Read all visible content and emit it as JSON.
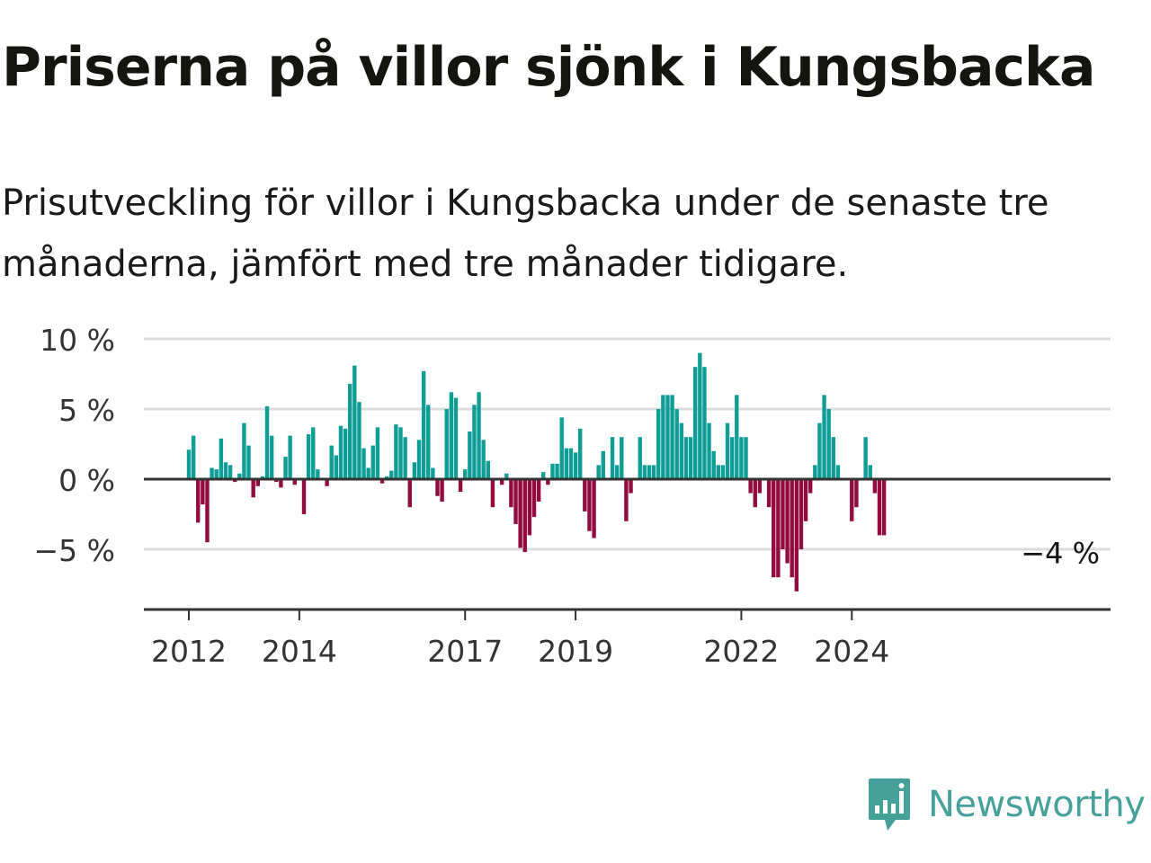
{
  "title": "Priserna på villor sjönk i Kungsbacka",
  "subtitle": "Prisutveckling för villor i Kungsbacka under de senaste tre månaderna, jämfört med tre månader tidigare.",
  "brand": {
    "name": "Newsworthy",
    "icon": "newsworthy-logo-icon",
    "color": "#45a19a"
  },
  "colors": {
    "positive": "#0f9e96",
    "negative": "#920c3f",
    "grid": "#dcdcdc",
    "axis": "#333333"
  },
  "chart_data": {
    "type": "bar",
    "title": "Priserna på villor sjönk i Kungsbacka",
    "subtitle": "Prisutveckling för villor i Kungsbacka under de senaste tre månaderna, jämfört med tre månader tidigare.",
    "xlabel": "",
    "ylabel": "",
    "unit": "%",
    "ylim": [
      -9,
      10
    ],
    "yticks": [
      {
        "value": 10,
        "label": "10 %"
      },
      {
        "value": 5,
        "label": "5 %"
      },
      {
        "value": 0,
        "label": "0 %"
      },
      {
        "value": -5,
        "label": "−5 %"
      }
    ],
    "x_start": "2012-01",
    "x_end": "2024-09",
    "xticks": [
      {
        "date": "2012-01",
        "label": "2012"
      },
      {
        "date": "2014-01",
        "label": "2014"
      },
      {
        "date": "2017-01",
        "label": "2017"
      },
      {
        "date": "2019-01",
        "label": "2019"
      },
      {
        "date": "2022-01",
        "label": "2022"
      },
      {
        "date": "2024-01",
        "label": "2024"
      }
    ],
    "grid": true,
    "annotation": {
      "date": "2024-09",
      "value": -4,
      "label": "−4 %"
    },
    "series": [
      {
        "values": [
          {
            "date": "2012-01",
            "value": 2.1
          },
          {
            "date": "2012-02",
            "value": 3.1
          },
          {
            "date": "2012-03",
            "value": -3.1
          },
          {
            "date": "2012-04",
            "value": -1.8
          },
          {
            "date": "2012-05",
            "value": -4.5
          },
          {
            "date": "2012-06",
            "value": 0.8
          },
          {
            "date": "2012-07",
            "value": 0.7
          },
          {
            "date": "2012-08",
            "value": 2.9
          },
          {
            "date": "2012-09",
            "value": 1.2
          },
          {
            "date": "2012-10",
            "value": 1.0
          },
          {
            "date": "2012-11",
            "value": -0.2
          },
          {
            "date": "2012-12",
            "value": 0.4
          },
          {
            "date": "2013-01",
            "value": 4.0
          },
          {
            "date": "2013-02",
            "value": 2.4
          },
          {
            "date": "2013-03",
            "value": -1.3
          },
          {
            "date": "2013-04",
            "value": -0.5
          },
          {
            "date": "2013-05",
            "value": 0.2
          },
          {
            "date": "2013-06",
            "value": 5.2
          },
          {
            "date": "2013-07",
            "value": 3.1
          },
          {
            "date": "2013-08",
            "value": -0.2
          },
          {
            "date": "2013-09",
            "value": -0.6
          },
          {
            "date": "2013-10",
            "value": 1.6
          },
          {
            "date": "2013-11",
            "value": 3.1
          },
          {
            "date": "2013-12",
            "value": -0.4
          },
          {
            "date": "2014-01",
            "value": 0.1
          },
          {
            "date": "2014-02",
            "value": -2.5
          },
          {
            "date": "2014-03",
            "value": 3.2
          },
          {
            "date": "2014-04",
            "value": 3.7
          },
          {
            "date": "2014-05",
            "value": 0.7
          },
          {
            "date": "2014-06",
            "value": 0.1
          },
          {
            "date": "2014-07",
            "value": -0.5
          },
          {
            "date": "2014-08",
            "value": 2.4
          },
          {
            "date": "2014-09",
            "value": 1.7
          },
          {
            "date": "2014-10",
            "value": 3.8
          },
          {
            "date": "2014-11",
            "value": 3.6
          },
          {
            "date": "2014-12",
            "value": 6.8
          },
          {
            "date": "2015-01",
            "value": 8.1
          },
          {
            "date": "2015-02",
            "value": 5.5
          },
          {
            "date": "2015-03",
            "value": 2.2
          },
          {
            "date": "2015-04",
            "value": 0.8
          },
          {
            "date": "2015-05",
            "value": 2.4
          },
          {
            "date": "2015-06",
            "value": 3.7
          },
          {
            "date": "2015-07",
            "value": -0.3
          },
          {
            "date": "2015-08",
            "value": 0.2
          },
          {
            "date": "2015-09",
            "value": 0.6
          },
          {
            "date": "2015-10",
            "value": 3.9
          },
          {
            "date": "2015-11",
            "value": 3.7
          },
          {
            "date": "2015-12",
            "value": 3.0
          },
          {
            "date": "2016-01",
            "value": -2.0
          },
          {
            "date": "2016-02",
            "value": 1.2
          },
          {
            "date": "2016-03",
            "value": 2.8
          },
          {
            "date": "2016-04",
            "value": 7.7
          },
          {
            "date": "2016-05",
            "value": 5.3
          },
          {
            "date": "2016-06",
            "value": 0.8
          },
          {
            "date": "2016-07",
            "value": -1.2
          },
          {
            "date": "2016-08",
            "value": -1.6
          },
          {
            "date": "2016-09",
            "value": 5.0
          },
          {
            "date": "2016-10",
            "value": 6.2
          },
          {
            "date": "2016-11",
            "value": 5.8
          },
          {
            "date": "2016-12",
            "value": -0.9
          },
          {
            "date": "2017-01",
            "value": 0.7
          },
          {
            "date": "2017-02",
            "value": 3.4
          },
          {
            "date": "2017-03",
            "value": 5.3
          },
          {
            "date": "2017-04",
            "value": 6.2
          },
          {
            "date": "2017-05",
            "value": 2.8
          },
          {
            "date": "2017-06",
            "value": 1.3
          },
          {
            "date": "2017-07",
            "value": -2.0
          },
          {
            "date": "2017-08",
            "value": 0.0
          },
          {
            "date": "2017-09",
            "value": -0.4
          },
          {
            "date": "2017-10",
            "value": 0.4
          },
          {
            "date": "2017-11",
            "value": -2.0
          },
          {
            "date": "2017-12",
            "value": -3.2
          },
          {
            "date": "2018-01",
            "value": -4.9
          },
          {
            "date": "2018-02",
            "value": -5.2
          },
          {
            "date": "2018-03",
            "value": -4.0
          },
          {
            "date": "2018-04",
            "value": -2.7
          },
          {
            "date": "2018-05",
            "value": -1.6
          },
          {
            "date": "2018-06",
            "value": 0.5
          },
          {
            "date": "2018-07",
            "value": -0.4
          },
          {
            "date": "2018-08",
            "value": 1.1
          },
          {
            "date": "2018-09",
            "value": 1.1
          },
          {
            "date": "2018-10",
            "value": 4.4
          },
          {
            "date": "2018-11",
            "value": 2.2
          },
          {
            "date": "2018-12",
            "value": 2.2
          },
          {
            "date": "2019-01",
            "value": 1.9
          },
          {
            "date": "2019-02",
            "value": 3.6
          },
          {
            "date": "2019-03",
            "value": -2.3
          },
          {
            "date": "2019-04",
            "value": -3.7
          },
          {
            "date": "2019-05",
            "value": -4.2
          },
          {
            "date": "2019-06",
            "value": 1.0
          },
          {
            "date": "2019-07",
            "value": 2.0
          },
          {
            "date": "2019-08",
            "value": 0.0
          },
          {
            "date": "2019-09",
            "value": 3.0
          },
          {
            "date": "2019-10",
            "value": 1.0
          },
          {
            "date": "2019-11",
            "value": 3.0
          },
          {
            "date": "2019-12",
            "value": -3.0
          },
          {
            "date": "2020-01",
            "value": -1.0
          },
          {
            "date": "2020-02",
            "value": 0.0
          },
          {
            "date": "2020-03",
            "value": 3.0
          },
          {
            "date": "2020-04",
            "value": 1.0
          },
          {
            "date": "2020-05",
            "value": 1.0
          },
          {
            "date": "2020-06",
            "value": 1.0
          },
          {
            "date": "2020-07",
            "value": 5.0
          },
          {
            "date": "2020-08",
            "value": 6.0
          },
          {
            "date": "2020-09",
            "value": 6.0
          },
          {
            "date": "2020-10",
            "value": 6.0
          },
          {
            "date": "2020-11",
            "value": 5.0
          },
          {
            "date": "2020-12",
            "value": 4.0
          },
          {
            "date": "2021-01",
            "value": 3.0
          },
          {
            "date": "2021-02",
            "value": 3.0
          },
          {
            "date": "2021-03",
            "value": 8.0
          },
          {
            "date": "2021-04",
            "value": 9.0
          },
          {
            "date": "2021-05",
            "value": 8.0
          },
          {
            "date": "2021-06",
            "value": 4.0
          },
          {
            "date": "2021-07",
            "value": 2.0
          },
          {
            "date": "2021-08",
            "value": 1.0
          },
          {
            "date": "2021-09",
            "value": 1.0
          },
          {
            "date": "2021-10",
            "value": 4.0
          },
          {
            "date": "2021-11",
            "value": 3.0
          },
          {
            "date": "2021-12",
            "value": 6.0
          },
          {
            "date": "2022-01",
            "value": 3.0
          },
          {
            "date": "2022-02",
            "value": 3.0
          },
          {
            "date": "2022-03",
            "value": -1.0
          },
          {
            "date": "2022-04",
            "value": -2.0
          },
          {
            "date": "2022-05",
            "value": -1.0
          },
          {
            "date": "2022-06",
            "value": 0.0
          },
          {
            "date": "2022-07",
            "value": -2.0
          },
          {
            "date": "2022-08",
            "value": -7.0
          },
          {
            "date": "2022-09",
            "value": -7.0
          },
          {
            "date": "2022-10",
            "value": -5.0
          },
          {
            "date": "2022-11",
            "value": -6.0
          },
          {
            "date": "2022-12",
            "value": -7.0
          },
          {
            "date": "2023-01",
            "value": -8.0
          },
          {
            "date": "2023-02",
            "value": -5.0
          },
          {
            "date": "2023-03",
            "value": -3.0
          },
          {
            "date": "2023-04",
            "value": -1.0
          },
          {
            "date": "2023-05",
            "value": 1.0
          },
          {
            "date": "2023-06",
            "value": 4.0
          },
          {
            "date": "2023-07",
            "value": 6.0
          },
          {
            "date": "2023-08",
            "value": 5.0
          },
          {
            "date": "2023-09",
            "value": 3.0
          },
          {
            "date": "2023-10",
            "value": 1.0
          },
          {
            "date": "2023-11",
            "value": 0.0
          },
          {
            "date": "2023-12",
            "value": 0.0
          },
          {
            "date": "2024-01",
            "value": -3.0
          },
          {
            "date": "2024-02",
            "value": -2.0
          },
          {
            "date": "2024-03",
            "value": 0.0
          },
          {
            "date": "2024-04",
            "value": 3.0
          },
          {
            "date": "2024-05",
            "value": 1.0
          },
          {
            "date": "2024-06",
            "value": -1.0
          },
          {
            "date": "2024-07",
            "value": -4.0
          },
          {
            "date": "2024-08",
            "value": -4.0
          }
        ]
      }
    ]
  }
}
